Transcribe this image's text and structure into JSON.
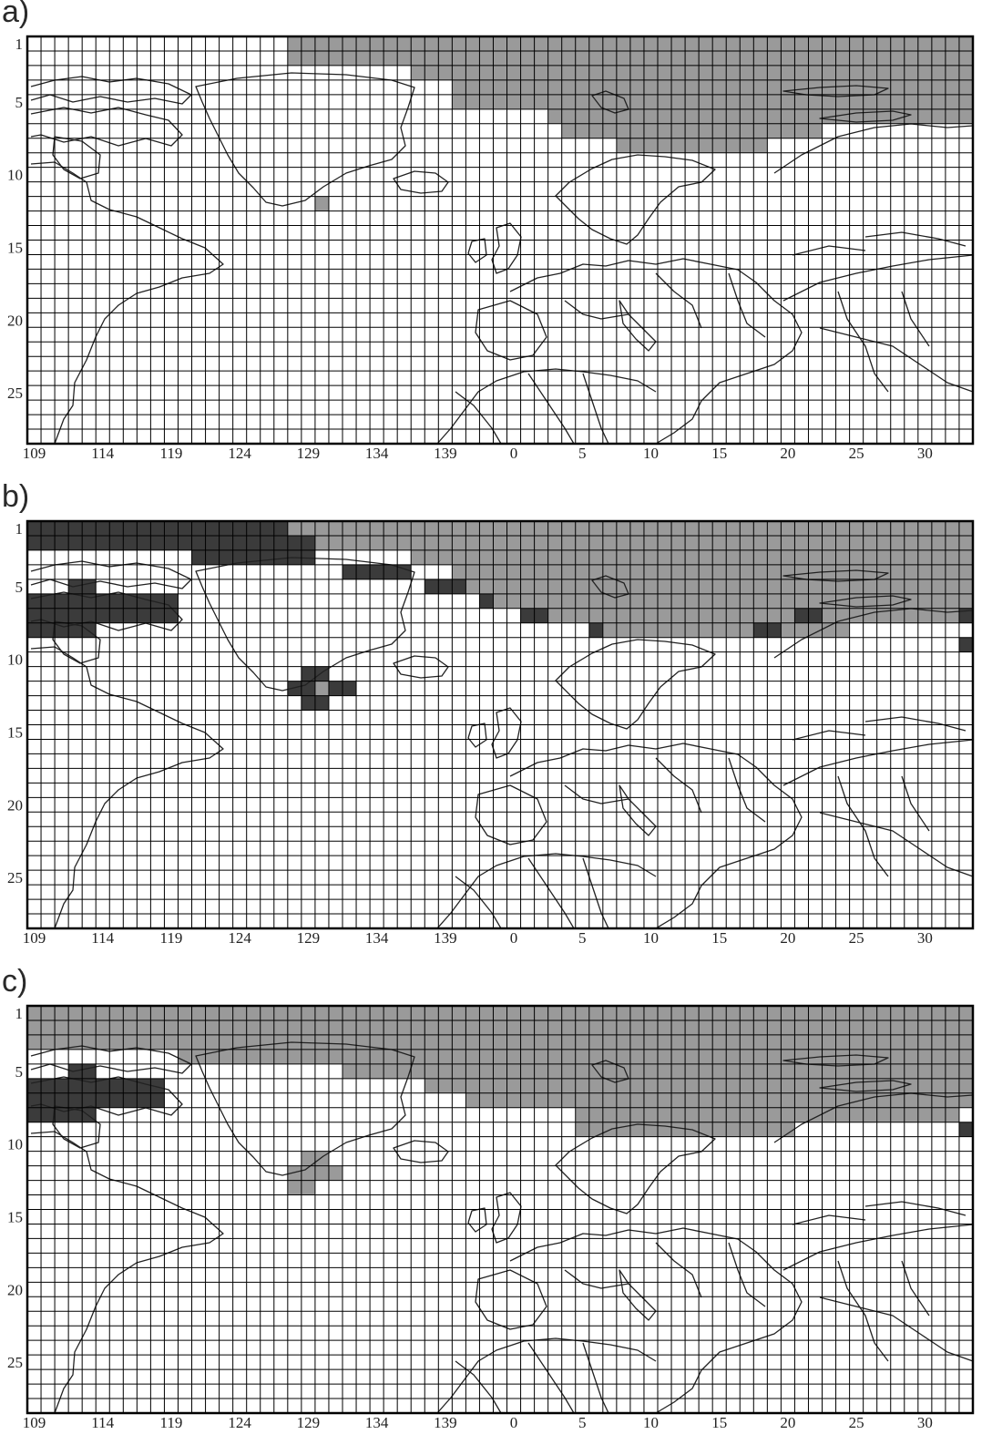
{
  "colors": {
    "light": "#9a9a9a",
    "dark": "#3b3b3b",
    "grid": "#000000",
    "coast": "#222222"
  },
  "grid": {
    "cols": 69,
    "rows": 28
  },
  "row_ticks": [
    {
      "row": 1,
      "label": "1"
    },
    {
      "row": 5,
      "label": "5"
    },
    {
      "row": 10,
      "label": "10"
    },
    {
      "row": 15,
      "label": "15"
    },
    {
      "row": 20,
      "label": "20"
    },
    {
      "row": 25,
      "label": "25"
    }
  ],
  "col_ticks": [
    {
      "col": 1,
      "label": "109"
    },
    {
      "col": 6,
      "label": "114"
    },
    {
      "col": 11,
      "label": "119"
    },
    {
      "col": 16,
      "label": "124"
    },
    {
      "col": 21,
      "label": "129"
    },
    {
      "col": 26,
      "label": "134"
    },
    {
      "col": 31,
      "label": "139"
    },
    {
      "col": 36,
      "label": "0"
    },
    {
      "col": 41,
      "label": "5"
    },
    {
      "col": 46,
      "label": "10"
    },
    {
      "col": 51,
      "label": "15"
    },
    {
      "col": 56,
      "label": "20"
    },
    {
      "col": 61,
      "label": "25"
    },
    {
      "col": 66,
      "label": "30"
    }
  ],
  "panels": [
    {
      "label": "a)",
      "light": [
        [
          1,
          19,
          68
        ],
        [
          2,
          19,
          68
        ],
        [
          3,
          28,
          68
        ],
        [
          4,
          31,
          68
        ],
        [
          5,
          31,
          68
        ],
        [
          6,
          38,
          68
        ],
        [
          7,
          39,
          57
        ],
        [
          8,
          43,
          53
        ],
        [
          12,
          21,
          21
        ]
      ],
      "dark": []
    },
    {
      "label": "b)",
      "light": [
        [
          1,
          19,
          68
        ],
        [
          2,
          21,
          68
        ],
        [
          3,
          28,
          68
        ],
        [
          4,
          31,
          68
        ],
        [
          5,
          32,
          68
        ],
        [
          6,
          34,
          68
        ],
        [
          7,
          38,
          67
        ],
        [
          8,
          42,
          59
        ],
        [
          12,
          21,
          21
        ]
      ],
      "dark": [
        [
          1,
          0,
          18
        ],
        [
          2,
          0,
          20
        ],
        [
          3,
          12,
          20
        ],
        [
          4,
          23,
          27
        ],
        [
          5,
          3,
          4
        ],
        [
          5,
          29,
          31
        ],
        [
          6,
          0,
          10
        ],
        [
          6,
          33,
          33
        ],
        [
          7,
          0,
          10
        ],
        [
          7,
          36,
          37
        ],
        [
          7,
          56,
          57
        ],
        [
          7,
          68,
          68
        ],
        [
          8,
          0,
          4
        ],
        [
          8,
          41,
          41
        ],
        [
          8,
          53,
          54
        ],
        [
          9,
          68,
          68
        ],
        [
          11,
          20,
          21
        ],
        [
          12,
          19,
          20
        ],
        [
          12,
          22,
          23
        ],
        [
          13,
          20,
          21
        ]
      ]
    },
    {
      "label": "c)",
      "light": [
        [
          1,
          0,
          68
        ],
        [
          2,
          0,
          68
        ],
        [
          3,
          0,
          68
        ],
        [
          4,
          11,
          68
        ],
        [
          5,
          23,
          68
        ],
        [
          6,
          29,
          68
        ],
        [
          7,
          32,
          68
        ],
        [
          8,
          40,
          67
        ],
        [
          9,
          40,
          55
        ],
        [
          11,
          20,
          21
        ],
        [
          12,
          19,
          22
        ],
        [
          13,
          19,
          20
        ]
      ],
      "dark": [
        [
          5,
          3,
          4
        ],
        [
          6,
          0,
          9
        ],
        [
          7,
          0,
          9
        ],
        [
          8,
          0,
          4
        ],
        [
          9,
          68,
          68
        ]
      ]
    }
  ]
}
